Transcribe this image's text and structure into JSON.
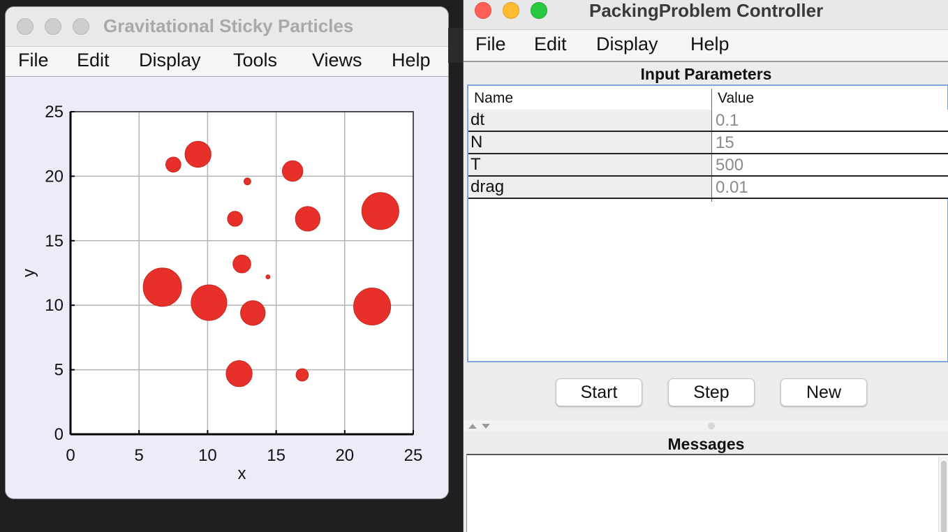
{
  "left_window": {
    "title": "Gravitational Sticky Particles",
    "menu": [
      "File",
      "Edit",
      "Display",
      "Tools",
      "Views",
      "Help"
    ]
  },
  "chart_data": {
    "type": "scatter",
    "xlabel": "x",
    "ylabel": "y",
    "xlim": [
      0,
      25
    ],
    "ylim": [
      0,
      25
    ],
    "xticks": [
      0,
      5,
      10,
      15,
      20,
      25
    ],
    "yticks": [
      0,
      5,
      10,
      15,
      20,
      25
    ],
    "grid": true,
    "marker_color": "#e8302a",
    "particles": [
      {
        "x": 7.5,
        "y": 20.9,
        "r": 0.55
      },
      {
        "x": 9.3,
        "y": 21.7,
        "r": 0.95
      },
      {
        "x": 12.9,
        "y": 19.6,
        "r": 0.25
      },
      {
        "x": 16.2,
        "y": 20.4,
        "r": 0.75
      },
      {
        "x": 22.6,
        "y": 17.3,
        "r": 1.35
      },
      {
        "x": 12.0,
        "y": 16.7,
        "r": 0.55
      },
      {
        "x": 17.3,
        "y": 16.7,
        "r": 0.9
      },
      {
        "x": 12.5,
        "y": 13.2,
        "r": 0.65
      },
      {
        "x": 14.4,
        "y": 12.2,
        "r": 0.15
      },
      {
        "x": 6.7,
        "y": 11.4,
        "r": 1.4
      },
      {
        "x": 10.1,
        "y": 10.2,
        "r": 1.3
      },
      {
        "x": 13.3,
        "y": 9.4,
        "r": 0.9
      },
      {
        "x": 22.0,
        "y": 9.9,
        "r": 1.35
      },
      {
        "x": 12.3,
        "y": 4.7,
        "r": 0.95
      },
      {
        "x": 16.9,
        "y": 4.6,
        "r": 0.45
      }
    ]
  },
  "right_window": {
    "title": "PackingProblem Controller",
    "menu": [
      "File",
      "Edit",
      "Display",
      "Help"
    ],
    "input_header": "Input Parameters",
    "col_name": "Name",
    "col_value": "Value",
    "params": [
      {
        "name": "dt",
        "value": "0.1"
      },
      {
        "name": "N",
        "value": "15"
      },
      {
        "name": "T",
        "value": "500"
      },
      {
        "name": "drag",
        "value": "0.01"
      }
    ],
    "buttons": {
      "start": "Start",
      "step": "Step",
      "new": "New"
    },
    "messages_header": "Messages"
  }
}
